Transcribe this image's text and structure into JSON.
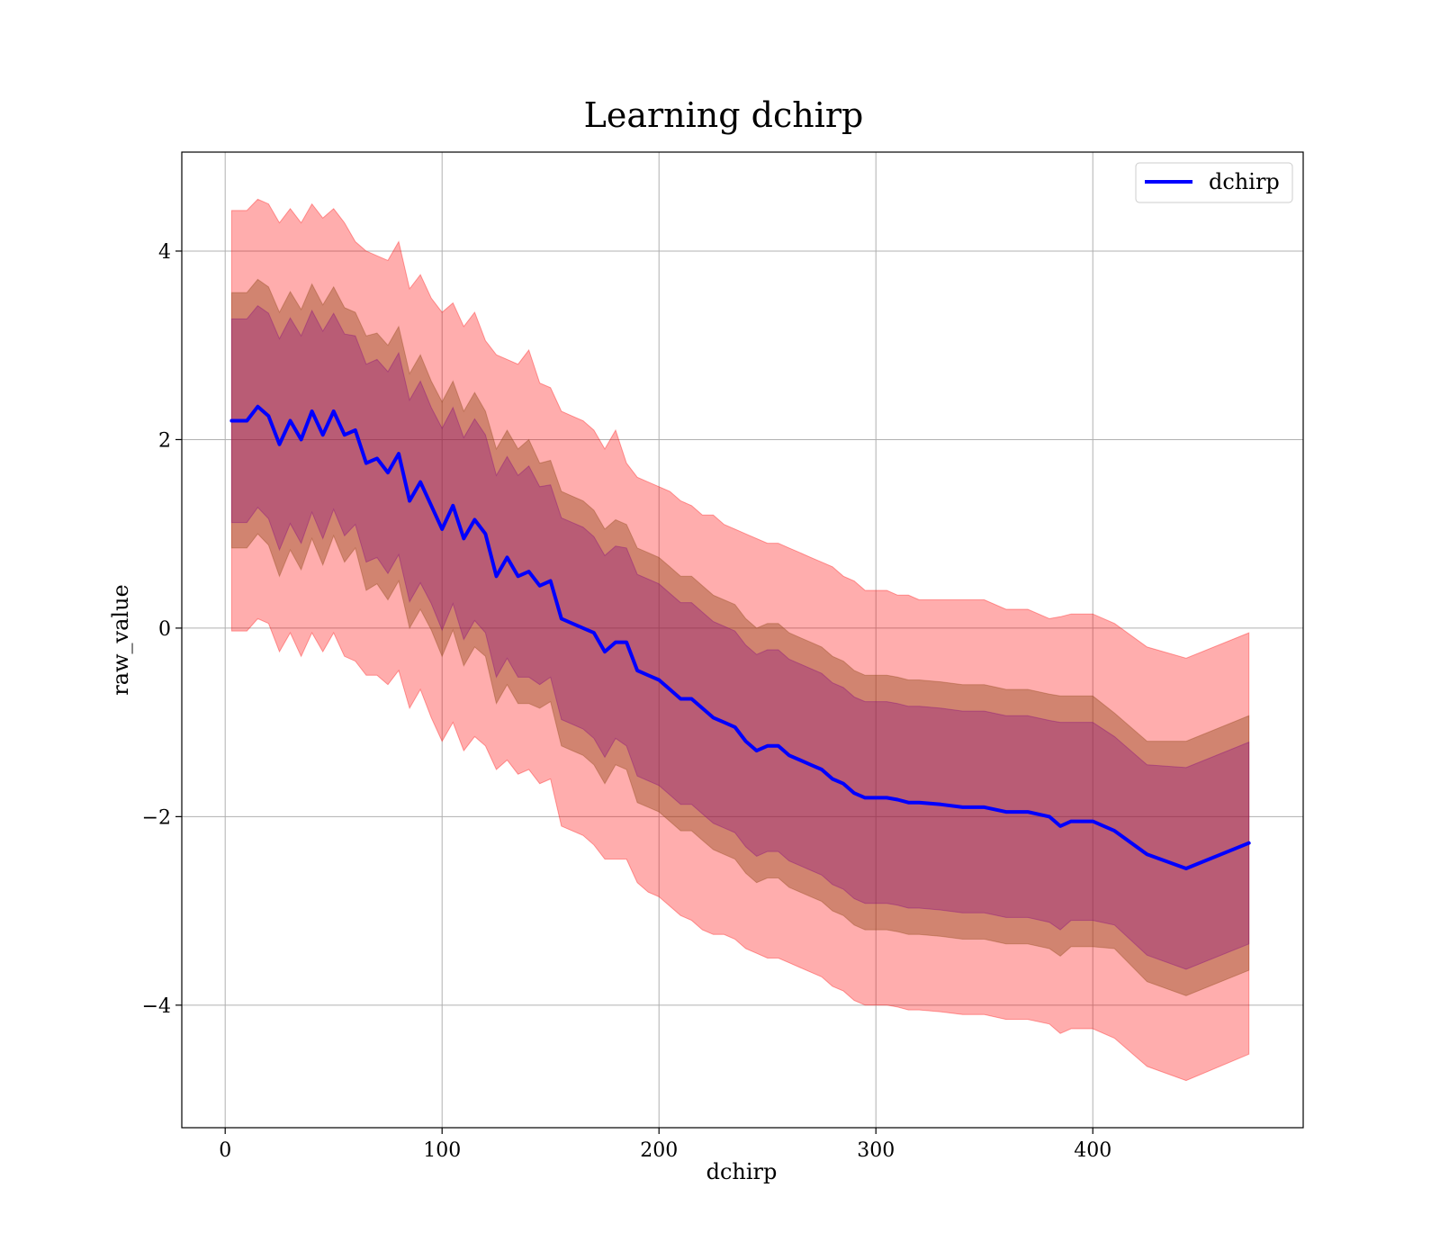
{
  "chart_data": {
    "type": "line",
    "title": "Learning dchirp",
    "xlabel": "dchirp",
    "ylabel": "raw_value",
    "xlim": [
      -20,
      497
    ],
    "ylim": [
      -5.3,
      5.05
    ],
    "grid": true,
    "legend": {
      "placement": "upper right",
      "entries": [
        "dchirp"
      ]
    },
    "xticks": [
      0,
      100,
      200,
      300,
      400
    ],
    "xtick_labels": [
      "0",
      "100",
      "200",
      "300",
      "400"
    ],
    "yticks": [
      4,
      2,
      0,
      -2,
      -4
    ],
    "ytick_labels": [
      "4",
      "2",
      "0",
      "−2",
      "−4"
    ],
    "colors": {
      "line": "#0000ff",
      "outer_band": "#ff0000",
      "middle_band": "#8b4513",
      "inner_band": "#800080",
      "grid": "#b0b0b0"
    },
    "series": [
      {
        "name": "dchirp",
        "x": [
          3,
          10,
          15,
          20,
          25,
          30,
          35,
          40,
          45,
          50,
          55,
          60,
          65,
          70,
          75,
          80,
          85,
          90,
          95,
          100,
          105,
          110,
          115,
          120,
          125,
          130,
          135,
          140,
          145,
          150,
          155,
          160,
          165,
          170,
          175,
          180,
          185,
          190,
          195,
          200,
          205,
          210,
          215,
          220,
          225,
          230,
          235,
          240,
          245,
          250,
          255,
          260,
          265,
          270,
          275,
          280,
          285,
          290,
          295,
          300,
          305,
          310,
          315,
          320,
          330,
          340,
          350,
          360,
          370,
          380,
          385,
          390,
          400,
          410,
          425,
          443,
          472
        ],
        "y": [
          2.2,
          2.2,
          2.35,
          2.25,
          1.95,
          2.2,
          2.0,
          2.3,
          2.05,
          2.3,
          2.05,
          2.1,
          1.75,
          1.8,
          1.65,
          1.85,
          1.35,
          1.55,
          1.3,
          1.05,
          1.3,
          0.95,
          1.15,
          1.0,
          0.55,
          0.75,
          0.55,
          0.6,
          0.45,
          0.5,
          0.1,
          0.05,
          0.0,
          -0.05,
          -0.25,
          -0.15,
          -0.15,
          -0.45,
          -0.5,
          -0.55,
          -0.65,
          -0.75,
          -0.75,
          -0.85,
          -0.95,
          -1.0,
          -1.05,
          -1.2,
          -1.3,
          -1.25,
          -1.25,
          -1.35,
          -1.4,
          -1.45,
          -1.5,
          -1.6,
          -1.65,
          -1.75,
          -1.8,
          -1.8,
          -1.8,
          -1.82,
          -1.85,
          -1.85,
          -1.87,
          -1.9,
          -1.9,
          -1.95,
          -1.95,
          -2.0,
          -2.1,
          -2.05,
          -2.05,
          -2.15,
          -2.4,
          -2.55,
          -2.28
        ]
      }
    ],
    "bands": [
      {
        "label": "outer",
        "x": [
          3,
          10,
          15,
          20,
          25,
          30,
          35,
          40,
          45,
          50,
          55,
          60,
          65,
          70,
          75,
          80,
          85,
          90,
          95,
          100,
          105,
          110,
          115,
          120,
          125,
          130,
          135,
          140,
          145,
          150,
          155,
          160,
          165,
          170,
          175,
          180,
          185,
          190,
          195,
          200,
          205,
          210,
          215,
          220,
          225,
          230,
          235,
          240,
          245,
          250,
          255,
          260,
          265,
          270,
          275,
          280,
          285,
          290,
          295,
          300,
          305,
          310,
          315,
          320,
          330,
          340,
          350,
          360,
          370,
          380,
          385,
          390,
          400,
          410,
          425,
          443,
          472
        ],
        "upper": [
          4.43,
          4.43,
          4.55,
          4.5,
          4.3,
          4.45,
          4.3,
          4.5,
          4.35,
          4.45,
          4.3,
          4.1,
          4.0,
          3.95,
          3.9,
          4.1,
          3.6,
          3.75,
          3.5,
          3.35,
          3.45,
          3.2,
          3.35,
          3.05,
          2.9,
          2.85,
          2.8,
          2.95,
          2.6,
          2.55,
          2.3,
          2.25,
          2.2,
          2.1,
          1.9,
          2.1,
          1.75,
          1.6,
          1.55,
          1.5,
          1.45,
          1.35,
          1.3,
          1.2,
          1.2,
          1.1,
          1.05,
          1.0,
          0.95,
          0.9,
          0.9,
          0.85,
          0.8,
          0.75,
          0.7,
          0.65,
          0.55,
          0.5,
          0.4,
          0.4,
          0.4,
          0.35,
          0.35,
          0.3,
          0.3,
          0.3,
          0.3,
          0.2,
          0.2,
          0.1,
          0.12,
          0.15,
          0.15,
          0.05,
          -0.2,
          -0.32,
          -0.05
        ],
        "lower": [
          -0.03,
          -0.03,
          0.1,
          0.05,
          -0.25,
          -0.05,
          -0.3,
          -0.05,
          -0.25,
          -0.05,
          -0.3,
          -0.35,
          -0.5,
          -0.5,
          -0.6,
          -0.45,
          -0.85,
          -0.65,
          -0.95,
          -1.2,
          -1.0,
          -1.3,
          -1.15,
          -1.25,
          -1.5,
          -1.4,
          -1.55,
          -1.5,
          -1.65,
          -1.6,
          -2.1,
          -2.15,
          -2.2,
          -2.3,
          -2.45,
          -2.45,
          -2.45,
          -2.7,
          -2.8,
          -2.85,
          -2.95,
          -3.05,
          -3.1,
          -3.2,
          -3.25,
          -3.25,
          -3.3,
          -3.4,
          -3.45,
          -3.5,
          -3.5,
          -3.55,
          -3.6,
          -3.65,
          -3.7,
          -3.8,
          -3.85,
          -3.95,
          -4.0,
          -4.0,
          -4.0,
          -4.02,
          -4.05,
          -4.05,
          -4.07,
          -4.1,
          -4.1,
          -4.15,
          -4.15,
          -4.2,
          -4.3,
          -4.25,
          -4.25,
          -4.35,
          -4.65,
          -4.8,
          -4.52
        ]
      },
      {
        "label": "middle",
        "x": [
          3,
          10,
          15,
          20,
          25,
          30,
          35,
          40,
          45,
          50,
          55,
          60,
          65,
          70,
          75,
          80,
          85,
          90,
          95,
          100,
          105,
          110,
          115,
          120,
          125,
          130,
          135,
          140,
          145,
          150,
          155,
          160,
          165,
          170,
          175,
          180,
          185,
          190,
          195,
          200,
          205,
          210,
          215,
          220,
          225,
          230,
          235,
          240,
          245,
          250,
          255,
          260,
          265,
          270,
          275,
          280,
          285,
          290,
          295,
          300,
          305,
          310,
          315,
          320,
          330,
          340,
          350,
          360,
          370,
          380,
          385,
          390,
          400,
          410,
          425,
          443,
          472
        ],
        "upper": [
          3.56,
          3.56,
          3.7,
          3.62,
          3.35,
          3.57,
          3.38,
          3.65,
          3.43,
          3.62,
          3.4,
          3.35,
          3.1,
          3.13,
          3.0,
          3.2,
          2.7,
          2.9,
          2.62,
          2.4,
          2.62,
          2.3,
          2.5,
          2.3,
          1.9,
          2.1,
          1.9,
          2.0,
          1.75,
          1.78,
          1.45,
          1.4,
          1.35,
          1.25,
          1.05,
          1.15,
          1.1,
          0.85,
          0.8,
          0.75,
          0.65,
          0.55,
          0.55,
          0.45,
          0.35,
          0.3,
          0.25,
          0.1,
          0.0,
          0.05,
          0.05,
          -0.05,
          -0.1,
          -0.15,
          -0.2,
          -0.3,
          -0.35,
          -0.45,
          -0.5,
          -0.5,
          -0.5,
          -0.52,
          -0.55,
          -0.55,
          -0.57,
          -0.6,
          -0.6,
          -0.65,
          -0.65,
          -0.7,
          -0.72,
          -0.72,
          -0.72,
          -0.9,
          -1.2,
          -1.2,
          -0.93
        ],
        "lower": [
          0.85,
          0.85,
          1.0,
          0.88,
          0.55,
          0.83,
          0.62,
          0.95,
          0.67,
          0.98,
          0.7,
          0.85,
          0.4,
          0.47,
          0.3,
          0.5,
          0.0,
          0.2,
          -0.02,
          -0.3,
          -0.02,
          -0.4,
          -0.2,
          -0.3,
          -0.8,
          -0.6,
          -0.8,
          -0.8,
          -0.85,
          -0.78,
          -1.25,
          -1.3,
          -1.35,
          -1.45,
          -1.65,
          -1.45,
          -1.5,
          -1.85,
          -1.9,
          -1.95,
          -2.05,
          -2.15,
          -2.15,
          -2.25,
          -2.35,
          -2.4,
          -2.45,
          -2.6,
          -2.7,
          -2.65,
          -2.65,
          -2.75,
          -2.8,
          -2.85,
          -2.9,
          -3.0,
          -3.05,
          -3.15,
          -3.2,
          -3.2,
          -3.2,
          -3.22,
          -3.25,
          -3.25,
          -3.27,
          -3.3,
          -3.3,
          -3.35,
          -3.35,
          -3.4,
          -3.48,
          -3.38,
          -3.38,
          -3.4,
          -3.75,
          -3.9,
          -3.63
        ]
      },
      {
        "label": "inner",
        "x": [
          3,
          10,
          15,
          20,
          25,
          30,
          35,
          40,
          45,
          50,
          55,
          60,
          65,
          70,
          75,
          80,
          85,
          90,
          95,
          100,
          105,
          110,
          115,
          120,
          125,
          130,
          135,
          140,
          145,
          150,
          155,
          160,
          165,
          170,
          175,
          180,
          185,
          190,
          195,
          200,
          205,
          210,
          215,
          220,
          225,
          230,
          235,
          240,
          245,
          250,
          255,
          260,
          265,
          270,
          275,
          280,
          285,
          290,
          295,
          300,
          305,
          310,
          315,
          320,
          330,
          340,
          350,
          360,
          370,
          380,
          385,
          390,
          400,
          410,
          425,
          443,
          472
        ],
        "upper": [
          3.28,
          3.28,
          3.42,
          3.34,
          3.07,
          3.29,
          3.1,
          3.37,
          3.15,
          3.34,
          3.12,
          3.1,
          2.8,
          2.85,
          2.72,
          2.92,
          2.42,
          2.62,
          2.34,
          2.12,
          2.34,
          2.02,
          2.22,
          2.05,
          1.62,
          1.82,
          1.62,
          1.72,
          1.5,
          1.52,
          1.17,
          1.12,
          1.07,
          0.97,
          0.77,
          0.87,
          0.85,
          0.57,
          0.52,
          0.47,
          0.37,
          0.27,
          0.27,
          0.17,
          0.07,
          0.02,
          -0.03,
          -0.18,
          -0.28,
          -0.23,
          -0.23,
          -0.33,
          -0.38,
          -0.43,
          -0.48,
          -0.58,
          -0.63,
          -0.73,
          -0.78,
          -0.78,
          -0.78,
          -0.8,
          -0.83,
          -0.83,
          -0.85,
          -0.88,
          -0.88,
          -0.93,
          -0.93,
          -0.98,
          -1.0,
          -1.0,
          -1.0,
          -1.15,
          -1.45,
          -1.48,
          -1.21
        ],
        "lower": [
          1.12,
          1.12,
          1.28,
          1.16,
          0.83,
          1.11,
          0.9,
          1.23,
          0.95,
          1.26,
          0.98,
          1.1,
          0.7,
          0.75,
          0.58,
          0.78,
          0.28,
          0.48,
          0.26,
          -0.02,
          0.26,
          -0.12,
          0.08,
          -0.05,
          -0.52,
          -0.32,
          -0.52,
          -0.52,
          -0.6,
          -0.52,
          -0.97,
          -1.02,
          -1.07,
          -1.17,
          -1.37,
          -1.17,
          -1.25,
          -1.57,
          -1.62,
          -1.67,
          -1.77,
          -1.87,
          -1.87,
          -1.97,
          -2.07,
          -2.12,
          -2.17,
          -2.32,
          -2.42,
          -2.37,
          -2.37,
          -2.47,
          -2.52,
          -2.57,
          -2.62,
          -2.72,
          -2.77,
          -2.87,
          -2.92,
          -2.92,
          -2.92,
          -2.94,
          -2.97,
          -2.97,
          -2.99,
          -3.02,
          -3.02,
          -3.07,
          -3.07,
          -3.12,
          -3.2,
          -3.1,
          -3.1,
          -3.15,
          -3.47,
          -3.62,
          -3.35
        ]
      }
    ]
  }
}
